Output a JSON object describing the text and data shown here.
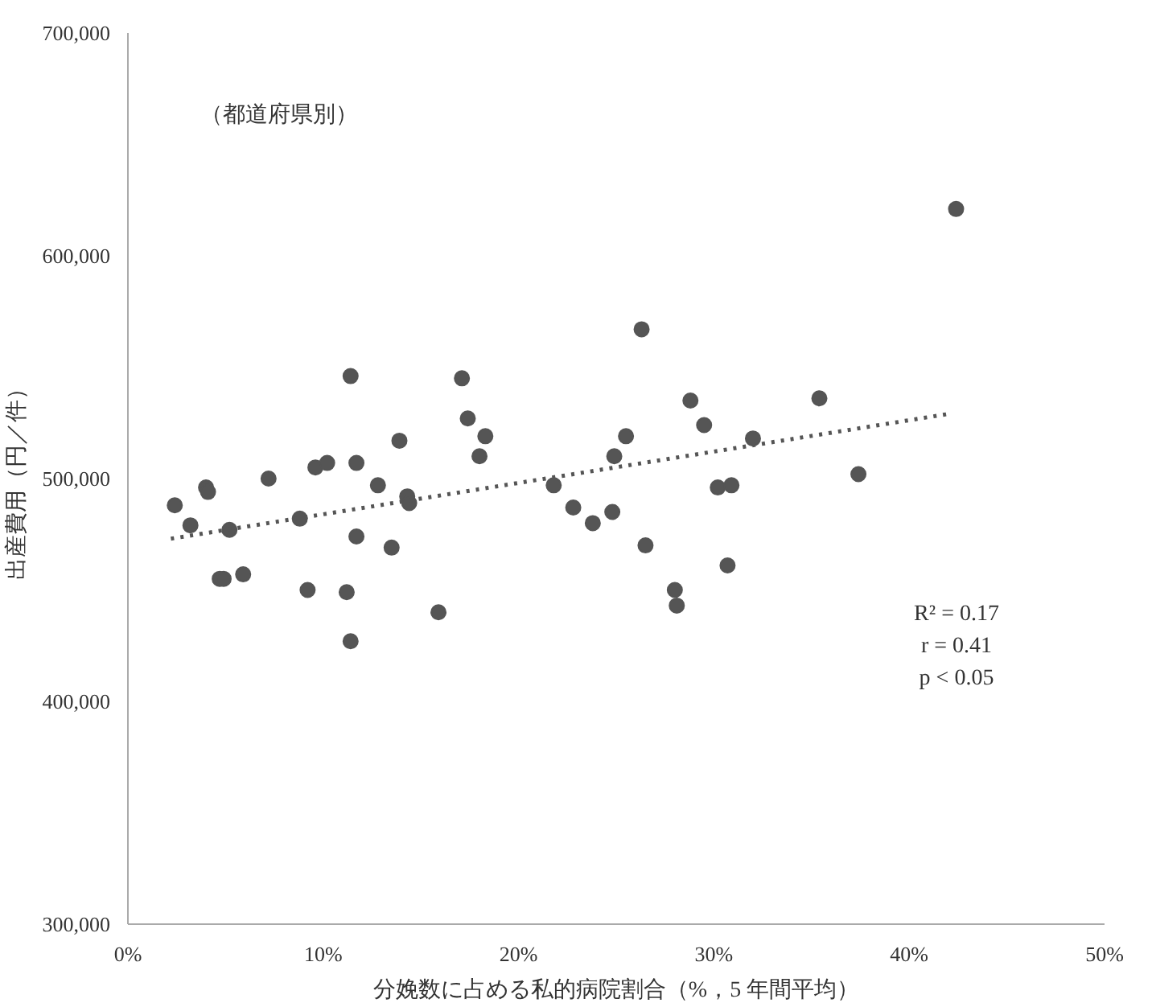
{
  "chart_data": {
    "type": "scatter",
    "xlabel": "分娩数に占める私的病院割合（%，5 年間平均）",
    "ylabel": "出産費用（円／件）",
    "xlim": [
      0,
      50
    ],
    "xticks": [
      {
        "value": 0,
        "label": "0%"
      },
      {
        "value": 10,
        "label": "10%"
      },
      {
        "value": 20,
        "label": "20%"
      },
      {
        "value": 30,
        "label": "30%"
      },
      {
        "value": 40,
        "label": "40%"
      },
      {
        "value": 50,
        "label": "50%"
      }
    ],
    "ylim": [
      300000,
      700000
    ],
    "yticks": [
      {
        "value": 300000,
        "label": "300,000"
      },
      {
        "value": 400000,
        "label": "400,000"
      },
      {
        "value": 500000,
        "label": "500,000"
      },
      {
        "value": 600000,
        "label": "600,000"
      },
      {
        "value": 700000,
        "label": "700,000"
      }
    ],
    "grid": false,
    "marker": "circle",
    "annotations": [
      "（都道府県別）",
      "R² = 0.17",
      "r = 0.41",
      "p < 0.05"
    ],
    "series": [
      {
        "color": "#555555",
        "x": [
          2.4,
          3.2,
          4.0,
          4.1,
          5.2,
          4.7,
          4.9,
          5.9,
          7.2,
          9.6,
          10.2,
          11.7,
          12.8,
          8.8,
          11.7,
          13.5,
          9.2,
          11.2,
          11.4,
          15.9,
          14.3,
          14.4,
          13.9,
          18.0,
          24.9,
          21.8,
          22.8,
          23.8,
          24.8,
          26.5,
          28.0,
          28.1,
          30.2,
          30.9,
          30.7,
          42.4,
          37.4,
          11.4,
          17.1,
          17.4,
          18.3,
          26.3,
          28.8,
          29.5,
          32.0,
          35.4,
          25.5
        ],
        "values": [
          488000,
          479000,
          496000,
          494000,
          477000,
          455000,
          455000,
          457000,
          500000,
          505000,
          507000,
          507000,
          497000,
          482000,
          474000,
          469000,
          450000,
          449000,
          427000,
          440000,
          492000,
          489000,
          517000,
          510000,
          510000,
          497000,
          487000,
          480000,
          485000,
          470000,
          450000,
          443000,
          496000,
          497000,
          461000,
          621000,
          502000,
          546000,
          545000,
          527000,
          519000,
          567000,
          535000,
          524000,
          518000,
          536000,
          519000
        ]
      },
      {
        "type": "line",
        "color": "#555555",
        "line_style": "dotted",
        "marker": "none",
        "x": [
          2.2,
          42.0
        ],
        "values": [
          473000,
          529000
        ]
      }
    ]
  }
}
